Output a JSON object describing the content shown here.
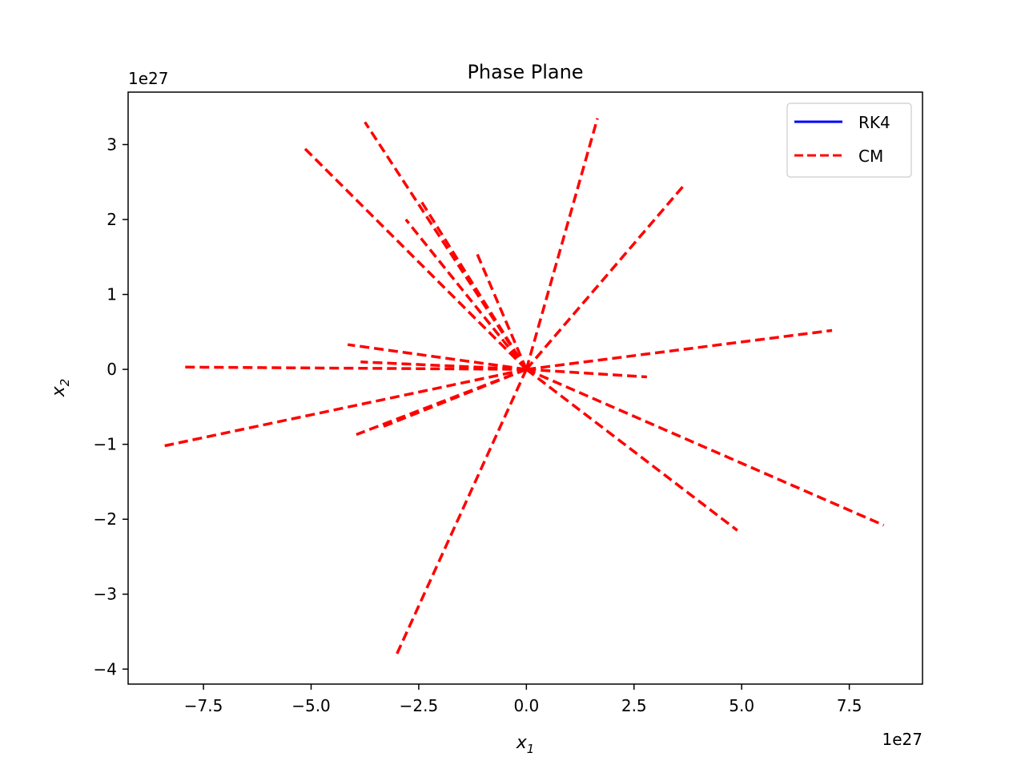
{
  "chart_data": {
    "type": "line",
    "title": "Phase Plane",
    "xlabel": "x_1",
    "ylabel": "x_2",
    "xlabel_main": "x",
    "xlabel_sub": "1",
    "ylabel_main": "x",
    "ylabel_sub": "2",
    "x_offset_label": "1e27",
    "y_offset_label": "1e27",
    "xlim": [
      -9.25,
      9.2
    ],
    "ylim": [
      -4.2,
      3.7
    ],
    "xticks": [
      -7.5,
      -5.0,
      -2.5,
      0.0,
      2.5,
      5.0,
      7.5
    ],
    "xtick_labels": [
      "−7.5",
      "−5.0",
      "−2.5",
      "0.0",
      "2.5",
      "5.0",
      "7.5"
    ],
    "yticks": [
      -4,
      -3,
      -2,
      -1,
      0,
      1,
      2,
      3
    ],
    "ytick_labels": [
      "−4",
      "−3",
      "−2",
      "−1",
      "0",
      "1",
      "2",
      "3"
    ],
    "grid": false,
    "legend_position": "top-right",
    "legend": [
      {
        "label": "RK4",
        "color": "#0000ff",
        "style": "solid"
      },
      {
        "label": "CM",
        "color": "#ff0000",
        "style": "dashed"
      }
    ],
    "series": [
      {
        "name": "CM",
        "color": "#ff0000",
        "style": "dashed",
        "segments": [
          [
            [
              0,
              0
            ],
            [
              -3.75,
              3.3
            ]
          ],
          [
            [
              0,
              0
            ],
            [
              -5.15,
              2.95
            ]
          ],
          [
            [
              0,
              0
            ],
            [
              1.65,
              3.35
            ]
          ],
          [
            [
              0,
              0
            ],
            [
              3.65,
              2.45
            ]
          ],
          [
            [
              0,
              0
            ],
            [
              -2.45,
              2.25
            ]
          ],
          [
            [
              0,
              0
            ],
            [
              -2.8,
              2.0
            ]
          ],
          [
            [
              0,
              0
            ],
            [
              -1.15,
              1.55
            ]
          ],
          [
            [
              0,
              0
            ],
            [
              7.1,
              0.52
            ]
          ],
          [
            [
              0,
              0
            ],
            [
              -4.15,
              0.33
            ]
          ],
          [
            [
              0,
              0
            ],
            [
              -3.85,
              0.1
            ]
          ],
          [
            [
              0,
              0
            ],
            [
              -7.95,
              0.03
            ]
          ],
          [
            [
              0,
              0
            ],
            [
              2.8,
              -0.1
            ]
          ],
          [
            [
              0,
              0
            ],
            [
              -8.4,
              -1.02
            ]
          ],
          [
            [
              0,
              0
            ],
            [
              -3.95,
              -0.87
            ]
          ],
          [
            [
              0,
              0
            ],
            [
              -3.4,
              -0.78
            ]
          ],
          [
            [
              0,
              0
            ],
            [
              4.9,
              -2.15
            ]
          ],
          [
            [
              0,
              0
            ],
            [
              8.3,
              -2.08
            ]
          ],
          [
            [
              0,
              0
            ],
            [
              -3.05,
              -3.85
            ]
          ]
        ]
      }
    ]
  }
}
